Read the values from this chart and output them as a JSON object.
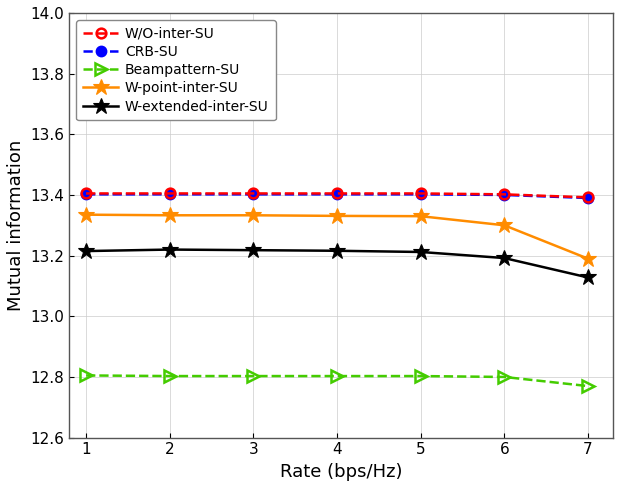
{
  "x": [
    1,
    2,
    3,
    4,
    5,
    6,
    7
  ],
  "wo_inter_su": [
    13.405,
    13.405,
    13.405,
    13.405,
    13.405,
    13.402,
    13.392
  ],
  "crb_su": [
    13.402,
    13.402,
    13.402,
    13.402,
    13.402,
    13.4,
    13.39
  ],
  "beampattern_su": [
    12.805,
    12.803,
    12.803,
    12.803,
    12.803,
    12.8,
    12.77
  ],
  "w_point_inter_su": [
    13.335,
    13.333,
    13.333,
    13.331,
    13.33,
    13.3,
    13.19
  ],
  "w_extended_inter_su": [
    13.215,
    13.22,
    13.218,
    13.216,
    13.212,
    13.192,
    13.128
  ],
  "xlabel": "Rate (bps/Hz)",
  "ylabel": "Mutual information",
  "ylim": [
    12.6,
    14.0
  ],
  "xlim": [
    0.8,
    7.3
  ],
  "yticks": [
    12.6,
    12.8,
    13.0,
    13.2,
    13.4,
    13.6,
    13.8,
    14.0
  ],
  "xticks": [
    1,
    2,
    3,
    4,
    5,
    6,
    7
  ],
  "colors": {
    "wo_inter_su": "#ff0000",
    "crb_su": "#0000ff",
    "beampattern_su": "#44cc00",
    "w_point_inter_su": "#ff8c00",
    "w_extended_inter_su": "#000000"
  },
  "labels": {
    "wo_inter_su": "W/O-inter-SU",
    "crb_su": "CRB-SU",
    "beampattern_su": "Beampattern-SU",
    "w_point_inter_su": "W-point-inter-SU",
    "w_extended_inter_su": "W-extended-inter-SU"
  }
}
